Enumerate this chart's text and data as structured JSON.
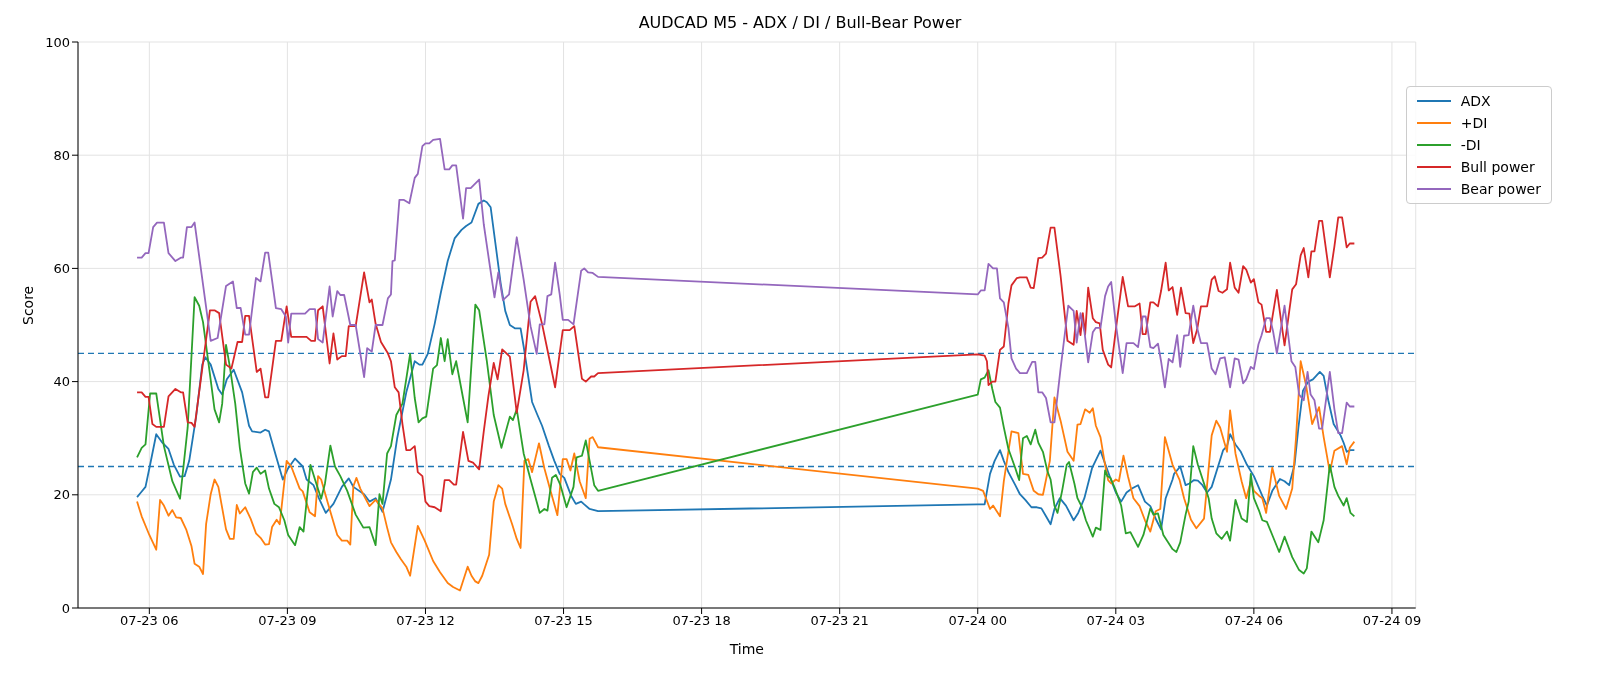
{
  "chart_data": {
    "type": "line",
    "title": "AUDCAD M5 - ADX / DI / Bull-Bear Power",
    "xlabel": "Time",
    "ylabel": "Score",
    "xlim": [
      "--07-23T04:27",
      "--07-24T09:31"
    ],
    "xticks": [
      {
        "value": "--07-23T06:00",
        "label": "07-23 06"
      },
      {
        "value": "--07-23T09:00",
        "label": "07-23 09"
      },
      {
        "value": "--07-23T12:00",
        "label": "07-23 12"
      },
      {
        "value": "--07-23T15:00",
        "label": "07-23 15"
      },
      {
        "value": "--07-23T18:00",
        "label": "07-23 18"
      },
      {
        "value": "--07-23T21:00",
        "label": "07-23 21"
      },
      {
        "value": "--07-24T00:00",
        "label": "07-24 00"
      },
      {
        "value": "--07-24T03:00",
        "label": "07-24 03"
      },
      {
        "value": "--07-24T06:00",
        "label": "07-24 06"
      },
      {
        "value": "--07-24T09:00",
        "label": "07-24 09"
      }
    ],
    "ylim": [
      0,
      100
    ],
    "yticks": [
      0,
      20,
      40,
      60,
      80,
      100
    ],
    "grid": true,
    "legend": "top right",
    "ref_lines": [
      {
        "axis": "y",
        "value": 25,
        "color": "#1f77b4",
        "line_style": "dashed"
      },
      {
        "axis": "y",
        "value": 45,
        "color": "#1f77b4",
        "line_style": "dashed"
      }
    ],
    "series": [
      {
        "name": "ADX",
        "color": "#1f77b4",
        "x": [
          "--07-23T05:44",
          "--07-23T05:49",
          "--07-23T05:55",
          "--07-23T06:01",
          "--07-23T06:09",
          "--07-23T06:17",
          "--07-23T06:25",
          "--07-23T06:32",
          "--07-23T06:40",
          "--07-23T06:46",
          "--07-23T06:52",
          "--07-23T07:01",
          "--07-23T07:09",
          "--07-23T07:13",
          "--07-23T07:20",
          "--07-23T07:30",
          "--07-23T07:35",
          "--07-23T07:41",
          "--07-23T07:50",
          "--07-23T08:01",
          "--07-23T08:10",
          "--07-23T08:14",
          "--07-23T08:25",
          "--07-23T08:31",
          "--07-23T08:36",
          "--07-23T08:45",
          "--07-23T08:54",
          "--07-23T09:01",
          "--07-23T09:10",
          "--07-23T09:20",
          "--07-23T09:25",
          "--07-23T09:34",
          "--07-23T09:41",
          "--07-23T09:50",
          "--07-23T10:00",
          "--07-23T10:11",
          "--07-23T10:20",
          "--07-23T10:26",
          "--07-23T10:40",
          "--07-23T10:47",
          "--07-23T10:55",
          "--07-23T11:04",
          "--07-23T11:15",
          "--07-23T11:23",
          "--07-23T11:35",
          "--07-23T11:46",
          "--07-23T11:52",
          "--07-23T11:56",
          "--07-23T12:03",
          "--07-23T12:12",
          "--07-23T12:20",
          "--07-23T12:29",
          "--07-23T12:38",
          "--07-23T12:47",
          "--07-23T12:53",
          "--07-23T13:00",
          "--07-23T13:09",
          "--07-23T13:16",
          "--07-23T13:20",
          "--07-23T13:25",
          "--07-23T13:31",
          "--07-23T13:38",
          "--07-23T13:44",
          "--07-23T13:50",
          "--07-23T13:57",
          "--07-23T14:04",
          "--07-23T14:08",
          "--07-23T14:19",
          "--07-23T14:26",
          "--07-23T14:32",
          "--07-23T14:41",
          "--07-23T14:48",
          "--07-23T14:55",
          "--07-23T15:01",
          "--07-23T15:10",
          "--07-23T15:16",
          "--07-23T15:23",
          "--07-23T15:27",
          "--07-23T15:34",
          "--07-23T15:45",
          "--07-24T00:00",
          "--07-24T00:09",
          "--07-24T00:16",
          "--07-24T00:22",
          "--07-24T00:29",
          "--07-24T00:34",
          "--07-24T00:40",
          "--07-24T00:49",
          "--07-24T00:55",
          "--07-24T01:02",
          "--07-24T01:10",
          "--07-24T01:17",
          "--07-24T01:23",
          "--07-24T01:29",
          "--07-24T01:35",
          "--07-24T01:40",
          "--07-24T01:47",
          "--07-24T01:55",
          "--07-24T02:05",
          "--07-24T02:11",
          "--07-24T02:19",
          "--07-24T02:29",
          "--07-24T02:40",
          "--07-24T02:50",
          "--07-24T03:00",
          "--07-24T03:07",
          "--07-24T03:14",
          "--07-24T03:21",
          "--07-24T03:29",
          "--07-24T03:38",
          "--07-24T03:45",
          "--07-24T03:53",
          "--07-24T03:59",
          "--07-24T04:05",
          "--07-24T04:14",
          "--07-24T04:16",
          "--07-24T04:24",
          "--07-24T04:31",
          "--07-24T04:36",
          "--07-24T04:42",
          "--07-24T04:47",
          "--07-24T04:53",
          "--07-24T04:59",
          "--07-24T05:05",
          "--07-24T05:14",
          "--07-24T05:20",
          "--07-24T05:25",
          "--07-24T05:29",
          "--07-24T05:36",
          "--07-24T05:43",
          "--07-24T05:51",
          "--07-24T06:00",
          "--07-24T06:07",
          "--07-24T06:11",
          "--07-24T06:17",
          "--07-24T06:24",
          "--07-24T06:34",
          "--07-24T06:40",
          "--07-24T06:46",
          "--07-24T06:53",
          "--07-24T06:58",
          "--07-24T07:04",
          "--07-24T07:11",
          "--07-24T07:17",
          "--07-24T07:26",
          "--07-24T07:31",
          "--07-24T07:37",
          "--07-24T07:44",
          "--07-24T07:53",
          "--07-24T07:57",
          "--07-24T08:01",
          "--07-24T08:06",
          "--07-24T08:11"
        ],
        "values": [
          19.6,
          20.4,
          21.4,
          25.3,
          30.7,
          29.2,
          28.1,
          25.3,
          23.2,
          23.3,
          26,
          33.8,
          43,
          44.3,
          43,
          38.7,
          37.7,
          40.4,
          42.1,
          38.1,
          32.2,
          31.2,
          31,
          31.5,
          31.2,
          26.9,
          22.7,
          24.7,
          26.4,
          25,
          22.7,
          21.7,
          19.4,
          16.8,
          18.4,
          21.4,
          22.9,
          21.4,
          20.1,
          18.8,
          19.4,
          17,
          22.7,
          29.9,
          38.1,
          43.6,
          43,
          43,
          44.9,
          50.2,
          55.7,
          61.3,
          65.3,
          66.8,
          67.5,
          68.1,
          71.4,
          72,
          71.7,
          70.8,
          64.6,
          57.4,
          52.5,
          50,
          49.4,
          49.4,
          46.2,
          36.4,
          34.1,
          32.2,
          28.6,
          26,
          23.7,
          23,
          19.8,
          18.4,
          18.8,
          18.3,
          17.5,
          17.1,
          18.3,
          18.3,
          23.7,
          26,
          27.9,
          26,
          24,
          21.7,
          20.1,
          19.1,
          17.8,
          17.8,
          17.6,
          16.2,
          14.8,
          17.5,
          19.4,
          18.1,
          15.5,
          16.8,
          19.4,
          24.7,
          27.8,
          24,
          20.4,
          18.8,
          20.4,
          21.1,
          21.7,
          18.8,
          18,
          15.5,
          13.9,
          19.4,
          22.7,
          23.7,
          25,
          21.7,
          22,
          22.6,
          22.5,
          21.7,
          20.4,
          21.4,
          25.3,
          27.9,
          28.6,
          30.7,
          28.9,
          27.6,
          25.3,
          23.3,
          21.1,
          19.8,
          18.1,
          20.7,
          22.8,
          22.4,
          21.7,
          25.3,
          31.8,
          38.4,
          40,
          40.4,
          41.7,
          41,
          36.7,
          32.5,
          30.5,
          29.2,
          27.6,
          27.9,
          27.9
        ]
      },
      {
        "name": "+DI",
        "color": "#ff7f0e",
        "x": [
          "--07-23T05:44",
          "--07-23T05:50",
          "--07-23T06:00",
          "--07-23T06:09",
          "--07-23T06:14",
          "--07-23T06:19",
          "--07-23T06:25",
          "--07-23T06:30",
          "--07-23T06:35",
          "--07-23T06:41",
          "--07-23T06:48",
          "--07-23T06:55",
          "--07-23T06:59",
          "--07-23T07:05",
          "--07-23T07:10",
          "--07-23T07:14",
          "--07-23T07:20",
          "--07-23T07:25",
          "--07-23T07:30",
          "--07-23T07:34",
          "--07-23T07:40",
          "--07-23T07:45",
          "--07-23T07:50",
          "--07-23T07:54",
          "--07-23T07:58",
          "--07-23T08:05",
          "--07-23T08:12",
          "--07-23T08:19",
          "--07-23T08:25",
          "--07-23T08:31",
          "--07-23T08:36",
          "--07-23T08:40",
          "--07-23T08:46",
          "--07-23T08:50",
          "--07-23T08:59",
          "--07-23T09:05",
          "--07-23T09:16",
          "--07-23T09:20",
          "--07-23T09:29",
          "--07-23T09:36",
          "--07-23T09:40",
          "--07-23T09:44",
          "--07-23T09:53",
          "--07-23T10:05",
          "--07-23T10:11",
          "--07-23T10:18",
          "--07-23T10:22",
          "--07-23T10:26",
          "--07-23T10:30",
          "--07-23T10:35",
          "--07-23T10:47",
          "--07-23T10:55",
          "--07-23T11:04",
          "--07-23T11:10",
          "--07-23T11:15",
          "--07-23T11:22",
          "--07-23T11:28",
          "--07-23T11:35",
          "--07-23T11:40",
          "--07-23T11:50",
          "--07-23T11:59",
          "--07-23T12:10",
          "--07-23T12:19",
          "--07-23T12:29",
          "--07-23T12:36",
          "--07-23T12:45",
          "--07-23T12:55",
          "--07-23T13:00",
          "--07-23T13:05",
          "--07-23T13:09",
          "--07-23T13:14",
          "--07-23T13:23",
          "--07-23T13:29",
          "--07-23T13:35",
          "--07-23T13:40",
          "--07-23T13:44",
          "--07-23T13:53",
          "--07-23T13:59",
          "--07-23T14:04",
          "--07-23T14:09",
          "--07-23T14:14",
          "--07-23T14:19",
          "--07-23T14:28",
          "--07-23T14:35",
          "--07-23T14:43",
          "--07-23T14:52",
          "--07-23T14:59",
          "--07-23T15:04",
          "--07-23T15:09",
          "--07-23T15:14",
          "--07-23T15:21",
          "--07-23T15:29",
          "--07-23T15:34",
          "--07-23T15:38",
          "--07-23T15:45",
          "--07-24T00:00",
          "--07-24T00:07",
          "--07-24T00:16",
          "--07-24T00:20",
          "--07-24T00:29",
          "--07-24T00:34",
          "--07-24T00:44",
          "--07-24T00:53",
          "--07-24T00:59",
          "--07-24T01:06",
          "--07-24T01:13",
          "--07-24T01:19",
          "--07-24T01:25",
          "--07-24T01:34",
          "--07-24T01:40",
          "--07-24T01:48",
          "--07-24T01:57",
          "--07-24T02:05",
          "--07-24T02:10",
          "--07-24T02:14",
          "--07-24T02:20",
          "--07-24T02:26",
          "--07-24T02:30",
          "--07-24T02:34",
          "--07-24T02:40",
          "--07-24T02:46",
          "--07-24T02:50",
          "--07-24T02:54",
          "--07-24T03:00",
          "--07-24T03:04",
          "--07-24T03:10",
          "--07-24T03:16",
          "--07-24T03:23",
          "--07-24T03:31",
          "--07-24T03:38",
          "--07-24T03:45",
          "--07-24T03:52",
          "--07-24T03:58",
          "--07-24T04:04",
          "--07-24T04:14",
          "--07-24T04:23",
          "--07-24T04:29",
          "--07-24T04:38",
          "--07-24T04:45",
          "--07-24T04:55",
          "--07-24T04:59",
          "--07-24T05:05",
          "--07-24T05:11",
          "--07-24T05:16",
          "--07-24T05:25",
          "--07-24T05:29",
          "--07-24T05:36",
          "--07-24T05:44",
          "--07-24T05:50",
          "--07-24T05:56",
          "--07-24T06:00",
          "--07-24T06:07",
          "--07-24T06:11",
          "--07-24T06:16",
          "--07-24T06:24",
          "--07-24T06:33",
          "--07-24T06:42",
          "--07-24T06:50",
          "--07-24T06:55",
          "--07-24T07:01",
          "--07-24T07:08",
          "--07-24T07:16",
          "--07-24T07:25",
          "--07-24T07:31",
          "--07-24T07:39",
          "--07-24T07:45",
          "--07-24T07:55",
          "--07-24T08:01",
          "--07-24T08:05",
          "--07-24T08:11"
        ],
        "values": [
          18.8,
          16.2,
          12.9,
          10.3,
          19.1,
          18.1,
          16.3,
          17.3,
          16,
          15.9,
          13.9,
          10.9,
          7.8,
          7.3,
          6,
          14.8,
          20.1,
          22.7,
          21.4,
          18.4,
          13.9,
          12.2,
          12.2,
          18.2,
          16.7,
          17.8,
          15.8,
          13.2,
          12.4,
          11.2,
          11.3,
          14.3,
          15.6,
          14.8,
          26,
          25,
          21.1,
          20.6,
          16.9,
          16.2,
          23.3,
          22.7,
          18.4,
          12.9,
          11.9,
          11.9,
          11.2,
          21.5,
          23,
          21.1,
          18,
          19.1,
          17.6,
          14.2,
          11.6,
          9.9,
          8.6,
          7.3,
          5.7,
          14.5,
          11.9,
          8.3,
          6.3,
          4.4,
          3.7,
          3.1,
          7.3,
          5.7,
          4.7,
          4.4,
          5.7,
          9.4,
          18.8,
          21.7,
          21.1,
          18.4,
          14.8,
          12.2,
          10.6,
          26,
          26.3,
          24,
          29.1,
          24.7,
          20.7,
          16.4,
          26.3,
          26.3,
          24.3,
          27.3,
          22.4,
          19.4,
          29.9,
          30.2,
          28.4,
          21.1,
          20.7,
          17.5,
          18.1,
          16.2,
          22.4,
          31.2,
          30.9,
          23.7,
          23.5,
          20.7,
          20.1,
          20,
          26,
          37.2,
          33.1,
          27.6,
          26,
          32.4,
          32.5,
          35.1,
          34.5,
          35.3,
          32.2,
          30.2,
          25.3,
          22.6,
          22,
          22.7,
          22.4,
          26.9,
          23.2,
          19.4,
          18,
          15.5,
          13.5,
          17.1,
          17.5,
          30.2,
          25.3,
          22.7,
          19.4,
          15.6,
          14.1,
          15.8,
          21.7,
          30.5,
          33.1,
          31.9,
          27.6,
          34.9,
          27.3,
          22.4,
          19.4,
          22.4,
          20.7,
          19.8,
          19.4,
          16.8,
          24.8,
          19.8,
          17.5,
          21.1,
          30.2,
          43.6,
          39.4,
          32.5,
          35.5,
          30.2,
          24,
          27.8,
          28.6,
          25.4,
          28.3,
          29.4
        ]
      },
      {
        "name": "-DI",
        "color": "#2ca02c",
        "x": [
          "--07-23T05:44",
          "--07-23T05:50",
          "--07-23T05:55",
          "--07-23T06:01",
          "--07-23T06:09",
          "--07-23T06:19",
          "--07-23T06:30",
          "--07-23T06:40",
          "--07-23T06:50",
          "--07-23T06:59",
          "--07-23T07:05",
          "--07-23T07:10",
          "--07-23T07:19",
          "--07-23T07:25",
          "--07-23T07:31",
          "--07-23T07:35",
          "--07-23T07:40",
          "--07-23T07:45",
          "--07-23T07:52",
          "--07-23T07:58",
          "--07-23T08:05",
          "--07-23T08:10",
          "--07-23T08:15",
          "--07-23T08:20",
          "--07-23T08:25",
          "--07-23T08:31",
          "--07-23T08:36",
          "--07-23T08:43",
          "--07-23T08:49",
          "--07-23T08:56",
          "--07-23T09:01",
          "--07-23T09:10",
          "--07-23T09:16",
          "--07-23T09:21",
          "--07-23T09:30",
          "--07-23T09:36",
          "--07-23T09:44",
          "--07-23T09:49",
          "--07-23T09:56",
          "--07-23T10:02",
          "--07-23T10:09",
          "--07-23T10:18",
          "--07-23T10:29",
          "--07-23T10:39",
          "--07-23T10:47",
          "--07-23T10:55",
          "--07-23T11:00",
          "--07-23T11:04",
          "--07-23T11:10",
          "--07-23T11:15",
          "--07-23T11:22",
          "--07-23T11:30",
          "--07-23T11:40",
          "--07-23T11:46",
          "--07-23T11:51",
          "--07-23T11:56",
          "--07-23T12:01",
          "--07-23T12:10",
          "--07-23T12:15",
          "--07-23T12:20",
          "--07-23T12:25",
          "--07-23T12:29",
          "--07-23T12:35",
          "--07-23T12:40",
          "--07-23T12:49",
          "--07-23T12:55",
          "--07-23T13:05",
          "--07-23T13:10",
          "--07-23T13:20",
          "--07-23T13:29",
          "--07-23T13:39",
          "--07-23T13:50",
          "--07-23T13:54",
          "--07-23T13:59",
          "--07-23T14:08",
          "--07-23T14:17",
          "--07-23T14:29",
          "--07-23T14:35",
          "--07-23T14:39",
          "--07-23T14:45",
          "--07-23T14:50",
          "--07-23T14:56",
          "--07-23T15:04",
          "--07-23T15:13",
          "--07-23T15:17",
          "--07-23T15:24",
          "--07-23T15:29",
          "--07-23T15:34",
          "--07-23T15:40",
          "--07-23T15:45",
          "--07-24T00:00",
          "--07-24T00:04",
          "--07-24T00:09",
          "--07-24T00:14",
          "--07-24T00:19",
          "--07-24T00:23",
          "--07-24T00:29",
          "--07-24T00:34",
          "--07-24T00:40",
          "--07-24T00:44",
          "--07-24T00:49",
          "--07-24T00:54",
          "--07-24T00:59",
          "--07-24T01:04",
          "--07-24T01:09",
          "--07-24T01:15",
          "--07-24T01:19",
          "--07-24T01:25",
          "--07-24T01:31",
          "--07-24T01:35",
          "--07-24T01:40",
          "--07-24T01:44",
          "--07-24T01:50",
          "--07-24T01:56",
          "--07-24T01:59",
          "--07-24T02:06",
          "--07-24T02:10",
          "--07-24T02:16",
          "--07-24T02:21",
          "--07-24T02:30",
          "--07-24T02:34",
          "--07-24T02:40",
          "--07-24T02:46",
          "--07-24T02:49",
          "--07-24T02:53",
          "--07-24T02:59",
          "--07-24T03:07",
          "--07-24T03:13",
          "--07-24T03:19",
          "--07-24T03:29",
          "--07-24T03:36",
          "--07-24T03:45",
          "--07-24T03:49",
          "--07-24T03:55",
          "--07-24T04:02",
          "--07-24T04:14",
          "--07-24T04:19",
          "--07-24T04:24",
          "--07-24T04:31",
          "--07-24T04:35",
          "--07-24T04:41",
          "--07-24T04:47",
          "--07-24T04:55",
          "--07-24T05:01",
          "--07-24T05:05",
          "--07-24T05:11",
          "--07-24T05:18",
          "--07-24T05:25",
          "--07-24T05:29",
          "--07-24T05:36",
          "--07-24T05:44",
          "--07-24T05:51",
          "--07-24T05:56",
          "--07-24T06:00",
          "--07-24T06:07",
          "--07-24T06:11",
          "--07-24T06:17",
          "--07-24T06:24",
          "--07-24T06:33",
          "--07-24T06:40",
          "--07-24T06:50",
          "--07-24T06:59",
          "--07-24T07:05",
          "--07-24T07:09",
          "--07-24T07:15",
          "--07-24T07:24",
          "--07-24T07:31",
          "--07-24T07:39",
          "--07-24T07:45",
          "--07-24T07:50",
          "--07-24T07:57",
          "--07-24T08:01",
          "--07-24T08:06",
          "--07-24T08:11"
        ],
        "values": [
          26.6,
          28.3,
          28.9,
          37.9,
          37.9,
          28.6,
          22.4,
          19.3,
          31.9,
          54.9,
          53.4,
          50.5,
          41.3,
          35.1,
          32.8,
          36.1,
          46.5,
          42.6,
          36.1,
          28.3,
          22,
          20.2,
          24,
          24.8,
          23.7,
          24.3,
          21.1,
          18.4,
          17.8,
          15.5,
          12.9,
          11.1,
          14.3,
          13.5,
          25.3,
          22.7,
          19.3,
          22,
          28.7,
          25,
          23.3,
          20.7,
          16.5,
          14.2,
          14.3,
          11.1,
          20.1,
          18.4,
          27.3,
          28.6,
          34.1,
          36.1,
          44.9,
          37.1,
          32.8,
          33.5,
          33.8,
          42.3,
          42.9,
          47.7,
          43.6,
          47.5,
          41.3,
          43.6,
          37.1,
          32.8,
          53.6,
          52.6,
          43.6,
          34.1,
          28.3,
          33.8,
          33.2,
          35.1,
          27.3,
          22.7,
          16.8,
          17.5,
          17.2,
          23,
          23.5,
          21.7,
          17.8,
          21.4,
          26.6,
          26.9,
          29.6,
          26,
          21.7,
          20.7,
          37.7,
          40.4,
          40.7,
          42,
          38.7,
          36.4,
          35.4,
          31.9,
          28.1,
          26.6,
          24.7,
          22.6,
          30,
          30.4,
          28.9,
          31.5,
          29.2,
          27.6,
          24.1,
          22.7,
          18.1,
          16.8,
          20.7,
          25.3,
          25.8,
          22,
          19.4,
          17.8,
          15.5,
          12.6,
          14.2,
          13.8,
          24.3,
          23.3,
          23,
          21.1,
          18.1,
          13.2,
          13.4,
          10.8,
          12.9,
          17.6,
          16.5,
          16.7,
          12.9,
          10.4,
          9.9,
          11.6,
          16.5,
          18.8,
          28.6,
          25.3,
          22,
          19.4,
          15.8,
          13.2,
          12.2,
          13.5,
          11.9,
          19.1,
          15.8,
          15.2,
          23.7,
          19.4,
          17.1,
          15.5,
          15.2,
          12.9,
          9.9,
          12.6,
          9,
          6.7,
          6.1,
          7,
          13.5,
          11.6,
          15.5,
          25.3,
          21.4,
          19.8,
          18.1,
          19.4,
          16.8,
          16.2
        ]
      },
      {
        "name": "Bull power",
        "color": "#d62728",
        "x": [
          "--07-23T05:44",
          "--07-23T05:50",
          "--07-23T05:55",
          "--07-23T05:59",
          "--07-23T06:04",
          "--07-23T06:09",
          "--07-23T06:19",
          "--07-23T06:25",
          "--07-23T06:34",
          "--07-23T06:41",
          "--07-23T06:44",
          "--07-23T06:50",
          "--07-23T06:55",
          "--07-23T06:59",
          "--07-23T07:19",
          "--07-23T07:25",
          "--07-23T07:31",
          "--07-23T07:40",
          "--07-23T07:47",
          "--07-23T07:55",
          "--07-23T08:01",
          "--07-23T08:05",
          "--07-23T08:10",
          "--07-23T08:20",
          "--07-23T08:25",
          "--07-23T08:31",
          "--07-23T08:35",
          "--07-23T08:45",
          "--07-23T08:52",
          "--07-23T08:59",
          "--07-23T09:05",
          "--07-23T09:25",
          "--07-23T09:31",
          "--07-23T09:36",
          "--07-23T09:40",
          "--07-23T09:46",
          "--07-23T09:55",
          "--07-23T10:00",
          "--07-23T10:05",
          "--07-23T10:11",
          "--07-23T10:16",
          "--07-23T10:20",
          "--07-23T10:29",
          "--07-23T10:40",
          "--07-23T10:47",
          "--07-23T10:50",
          "--07-23T10:55",
          "--07-23T11:02",
          "--07-23T11:11",
          "--07-23T11:15",
          "--07-23T11:20",
          "--07-23T11:25",
          "--07-23T11:30",
          "--07-23T11:35",
          "--07-23T11:40",
          "--07-23T11:46",
          "--07-23T11:50",
          "--07-23T11:56",
          "--07-23T12:00",
          "--07-23T12:05",
          "--07-23T12:12",
          "--07-23T12:20",
          "--07-23T12:25",
          "--07-23T12:31",
          "--07-23T12:37",
          "--07-23T12:40",
          "--07-23T12:49",
          "--07-23T12:56",
          "--07-23T13:02",
          "--07-23T13:10",
          "--07-23T13:16",
          "--07-23T13:22",
          "--07-23T13:29",
          "--07-23T13:34",
          "--07-23T13:40",
          "--07-23T13:50",
          "--07-23T13:59",
          "--07-23T14:08",
          "--07-23T14:17",
          "--07-23T14:23",
          "--07-23T14:32",
          "--07-23T14:41",
          "--07-23T14:49",
          "--07-23T14:59",
          "--07-23T15:08",
          "--07-23T15:14",
          "--07-23T15:24",
          "--07-23T15:29",
          "--07-23T15:36",
          "--07-23T15:40",
          "--07-23T15:45",
          "--07-24T00:00",
          "--07-24T00:09",
          "--07-24T00:12",
          "--07-24T00:14",
          "--07-24T00:19",
          "--07-24T00:23",
          "--07-24T00:29",
          "--07-24T00:34",
          "--07-24T00:40",
          "--07-24T00:44",
          "--07-24T00:51",
          "--07-24T00:55",
          "--07-24T01:04",
          "--07-24T01:09",
          "--07-24T01:13",
          "--07-24T01:19",
          "--07-24T01:24",
          "--07-24T01:29",
          "--07-24T01:35",
          "--07-24T01:40",
          "--07-24T01:48",
          "--07-24T01:57",
          "--07-24T02:05",
          "--07-24T02:09",
          "--07-24T02:14",
          "--07-24T02:17",
          "--07-24T02:20",
          "--07-24T02:24",
          "--07-24T02:30",
          "--07-24T02:34",
          "--07-24T02:39",
          "--07-24T02:43",
          "--07-24T02:50",
          "--07-24T02:54",
          "--07-24T03:01",
          "--07-24T03:09",
          "--07-24T03:16",
          "--07-24T03:25",
          "--07-24T03:31",
          "--07-24T03:35",
          "--07-24T03:39",
          "--07-24T03:45",
          "--07-24T03:49",
          "--07-24T03:55",
          "--07-24T03:59",
          "--07-24T04:05",
          "--07-24T04:09",
          "--07-24T04:14",
          "--07-24T04:20",
          "--07-24T04:25",
          "--07-24T04:31",
          "--07-24T04:36",
          "--07-24T04:41",
          "--07-24T04:46",
          "--07-24T04:51",
          "--07-24T04:59",
          "--07-24T05:05",
          "--07-24T05:09",
          "--07-24T05:14",
          "--07-24T05:19",
          "--07-24T05:25",
          "--07-24T05:29",
          "--07-24T05:35",
          "--07-24T05:40",
          "--07-24T05:46",
          "--07-24T05:50",
          "--07-24T05:56",
          "--07-24T06:00",
          "--07-24T06:06",
          "--07-24T06:10",
          "--07-24T06:16",
          "--07-24T06:21",
          "--07-24T06:30",
          "--07-24T06:35",
          "--07-24T06:40",
          "--07-24T06:50",
          "--07-24T06:55",
          "--07-24T07:01",
          "--07-24T07:05",
          "--07-24T07:11",
          "--07-24T07:15",
          "--07-24T07:19",
          "--07-24T07:25",
          "--07-24T07:29",
          "--07-24T07:39",
          "--07-24T07:45",
          "--07-24T07:50",
          "--07-24T07:55",
          "--07-24T08:01",
          "--07-24T08:05",
          "--07-24T08:11"
        ],
        "values": [
          38.1,
          38.1,
          37.3,
          37.3,
          32.5,
          32,
          32,
          37.4,
          38.7,
          38.1,
          38.1,
          32.8,
          32.7,
          32,
          52.6,
          52.6,
          52.1,
          43,
          42.3,
          47,
          47,
          51.6,
          51.6,
          41.7,
          42.3,
          37.2,
          37.2,
          47.2,
          47.2,
          53.3,
          47.9,
          47.9,
          47.2,
          47.2,
          52.6,
          53.3,
          43.2,
          48.5,
          43.9,
          44.5,
          44.5,
          49.8,
          49.8,
          59.3,
          54,
          54.5,
          50.2,
          47,
          45,
          43.6,
          39,
          38.1,
          32.5,
          27.9,
          27.9,
          28.6,
          24,
          23.3,
          18.8,
          18,
          17.8,
          17.1,
          22.6,
          22.6,
          21.8,
          21.8,
          31.1,
          26,
          25.7,
          24.5,
          31.2,
          37.4,
          43.3,
          40.4,
          45.7,
          44.4,
          34.5,
          42,
          54.1,
          55.1,
          50.2,
          44.3,
          39,
          49.1,
          49.1,
          49.8,
          40.5,
          40,
          40.9,
          40.9,
          41.5,
          44.8,
          44.6,
          43.6,
          39.4,
          40,
          40,
          45.6,
          46.2,
          53.8,
          57,
          58.3,
          58.4,
          58.4,
          56.6,
          56.5,
          61.8,
          61.9,
          62.6,
          67.2,
          67.2,
          58.7,
          47.2,
          46.5,
          52.5,
          48.2,
          52.1,
          48.3,
          56.6,
          51.2,
          50.5,
          50.3,
          45.6,
          43,
          42.5,
          50.2,
          58.5,
          53.3,
          53.3,
          53.8,
          48.4,
          48.4,
          54,
          54,
          53.3,
          56,
          61,
          56.1,
          56.7,
          51.8,
          56.6,
          52.1,
          52,
          46.8,
          49.2,
          53.3,
          53.3,
          58,
          58.6,
          56,
          55.7,
          56.3,
          61,
          56.6,
          55.7,
          60.4,
          59.8,
          57.5,
          58.1,
          54,
          53.6,
          48.8,
          48.8,
          56.2,
          51.2,
          46.4,
          56.3,
          57.2,
          62.3,
          63.6,
          58.4,
          63,
          63,
          68.4,
          68.4,
          58.4,
          63.9,
          69,
          69,
          63.7,
          64.4,
          64.4
        ]
      },
      {
        "name": "Bear power",
        "color": "#9467bd",
        "x": [
          "--07-23T05:44",
          "--07-23T05:50",
          "--07-23T05:55",
          "--07-23T05:59",
          "--07-23T06:05",
          "--07-23T06:10",
          "--07-23T06:19",
          "--07-23T06:25",
          "--07-23T06:34",
          "--07-23T06:41",
          "--07-23T06:44",
          "--07-23T06:49",
          "--07-23T06:55",
          "--07-23T06:59",
          "--07-23T07:20",
          "--07-23T07:29",
          "--07-23T07:40",
          "--07-23T07:49",
          "--07-23T07:54",
          "--07-23T07:59",
          "--07-23T08:05",
          "--07-23T08:10",
          "--07-23T08:19",
          "--07-23T08:25",
          "--07-23T08:31",
          "--07-23T08:35",
          "--07-23T08:45",
          "--07-23T08:52",
          "--07-23T08:58",
          "--07-23T09:01",
          "--07-23T09:05",
          "--07-23T09:23",
          "--07-23T09:29",
          "--07-23T09:36",
          "--07-23T09:40",
          "--07-23T09:46",
          "--07-23T09:55",
          "--07-23T09:59",
          "--07-23T10:05",
          "--07-23T10:09",
          "--07-23T10:14",
          "--07-23T10:22",
          "--07-23T10:29",
          "--07-23T10:40",
          "--07-23T10:44",
          "--07-23T10:50",
          "--07-23T10:55",
          "--07-23T11:04",
          "--07-23T11:11",
          "--07-23T11:15",
          "--07-23T11:17",
          "--07-23T11:20",
          "--07-23T11:26",
          "--07-23T11:32",
          "--07-23T11:39",
          "--07-23T11:46",
          "--07-23T11:50",
          "--07-23T11:56",
          "--07-23T12:00",
          "--07-23T12:05",
          "--07-23T12:10",
          "--07-23T12:19",
          "--07-23T12:25",
          "--07-23T12:31",
          "--07-23T12:35",
          "--07-23T12:40",
          "--07-23T12:49",
          "--07-23T12:53",
          "--07-23T12:59",
          "--07-23T13:10",
          "--07-23T13:16",
          "--07-23T13:23",
          "--07-23T13:30",
          "--07-23T13:35",
          "--07-23T13:41",
          "--07-23T13:49",
          "--07-23T13:59",
          "--07-23T14:08",
          "--07-23T14:17",
          "--07-23T14:25",
          "--07-23T14:29",
          "--07-23T14:35",
          "--07-23T14:39",
          "--07-23T14:44",
          "--07-23T14:49",
          "--07-23T14:55",
          "--07-23T14:59",
          "--07-23T15:06",
          "--07-23T15:13",
          "--07-23T15:23",
          "--07-23T15:27",
          "--07-23T15:32",
          "--07-23T15:38",
          "--07-23T15:45",
          "--07-24T00:00",
          "--07-24T00:04",
          "--07-24T00:09",
          "--07-24T00:14",
          "--07-24T00:20",
          "--07-24T00:25",
          "--07-24T00:29",
          "--07-24T00:34",
          "--07-24T00:40",
          "--07-24T00:44",
          "--07-24T00:50",
          "--07-24T00:55",
          "--07-24T01:04",
          "--07-24T01:11",
          "--07-24T01:15",
          "--07-24T01:19",
          "--07-24T01:24",
          "--07-24T01:29",
          "--07-24T01:35",
          "--07-24T01:40",
          "--07-24T01:48",
          "--07-24T01:58",
          "--07-24T02:05",
          "--07-24T02:09",
          "--07-24T02:14",
          "--07-24T02:19",
          "--07-24T02:24",
          "--07-24T02:30",
          "--07-24T02:34",
          "--07-24T02:40",
          "--07-24T02:46",
          "--07-24T02:50",
          "--07-24T02:54",
          "--07-24T03:00",
          "--07-24T03:09",
          "--07-24T03:14",
          "--07-24T03:23",
          "--07-24T03:29",
          "--07-24T03:35",
          "--07-24T03:39",
          "--07-24T03:45",
          "--07-24T03:49",
          "--07-24T03:55",
          "--07-24T03:59",
          "--07-24T04:04",
          "--07-24T04:09",
          "--07-24T04:14",
          "--07-24T04:20",
          "--07-24T04:24",
          "--07-24T04:29",
          "--07-24T04:35",
          "--07-24T04:41",
          "--07-24T04:46",
          "--07-24T04:51",
          "--07-24T04:59",
          "--07-24T05:05",
          "--07-24T05:10",
          "--07-24T05:16",
          "--07-24T05:22",
          "--07-24T05:29",
          "--07-24T05:35",
          "--07-24T05:40",
          "--07-24T05:46",
          "--07-24T05:50",
          "--07-24T05:56",
          "--07-24T06:00",
          "--07-24T06:06",
          "--07-24T06:10",
          "--07-24T06:16",
          "--07-24T06:21",
          "--07-24T06:25",
          "--07-24T06:30",
          "--07-24T06:35",
          "--07-24T06:40",
          "--07-24T06:49",
          "--07-24T06:54",
          "--07-24T06:59",
          "--07-24T07:05",
          "--07-24T07:10",
          "--07-24T07:14",
          "--07-24T07:19",
          "--07-24T07:25",
          "--07-24T07:29",
          "--07-24T07:39",
          "--07-24T07:45",
          "--07-24T07:50",
          "--07-24T07:55",
          "--07-24T08:01",
          "--07-24T08:05",
          "--07-24T08:11"
        ],
        "values": [
          61.9,
          61.9,
          62.7,
          62.7,
          67.3,
          68.1,
          68.1,
          62.7,
          61.3,
          61.9,
          61.9,
          67.3,
          67.3,
          68.1,
          47.2,
          47.7,
          56.9,
          57.7,
          53,
          53,
          48.3,
          48.3,
          58.3,
          57.7,
          62.8,
          62.8,
          53,
          52.8,
          51.5,
          46.9,
          52,
          52,
          52.8,
          52.8,
          47.5,
          46.9,
          56.8,
          51.5,
          56,
          55.3,
          55.3,
          50,
          50,
          40.8,
          45.9,
          45.3,
          50,
          50,
          54.7,
          55.4,
          61.3,
          61.4,
          72.1,
          72.1,
          71.5,
          76,
          76.7,
          81.6,
          82.1,
          82.1,
          82.7,
          82.9,
          77.5,
          77.5,
          78.2,
          78.2,
          68.8,
          74.2,
          74.2,
          75.7,
          67.8,
          61.3,
          54.9,
          59.3,
          54.4,
          55.4,
          65.5,
          58,
          49.8,
          44.9,
          50.1,
          50.1,
          55.1,
          55.4,
          61,
          55.4,
          50.9,
          50.9,
          50.1,
          59.6,
          60,
          59.3,
          59.2,
          58.5,
          55.4,
          56.1,
          56.1,
          60.8,
          60,
          60,
          54.7,
          54,
          49.5,
          44.1,
          42.3,
          41.5,
          41.5,
          43.5,
          43.5,
          38.1,
          38.1,
          37.1,
          32.8,
          32.8,
          42.3,
          53.4,
          52.5,
          46.9,
          52.1,
          48.9,
          43.4,
          48.7,
          49.5,
          49.5,
          55.1,
          56.8,
          57.6,
          50.2,
          41.5,
          46.8,
          46.8,
          46.1,
          51.5,
          51.5,
          46.1,
          45.9,
          46.7,
          43.6,
          39,
          44,
          43.4,
          48.2,
          42.6,
          48.1,
          48.2,
          53.4,
          49.5,
          46.8,
          46.8,
          42.3,
          41.3,
          44.1,
          44.3,
          39,
          44.1,
          43.9,
          39.7,
          40.4,
          42.6,
          42.2,
          46.6,
          48.2,
          51.2,
          51.2,
          48.9,
          45,
          49.2,
          53.4,
          43.6,
          42.6,
          37.7,
          36.7,
          41.7,
          37.7,
          36.7,
          31.7,
          31.7,
          41.7,
          35.1,
          30.9,
          30.9,
          36.3,
          35.6,
          35.6
        ]
      }
    ]
  }
}
